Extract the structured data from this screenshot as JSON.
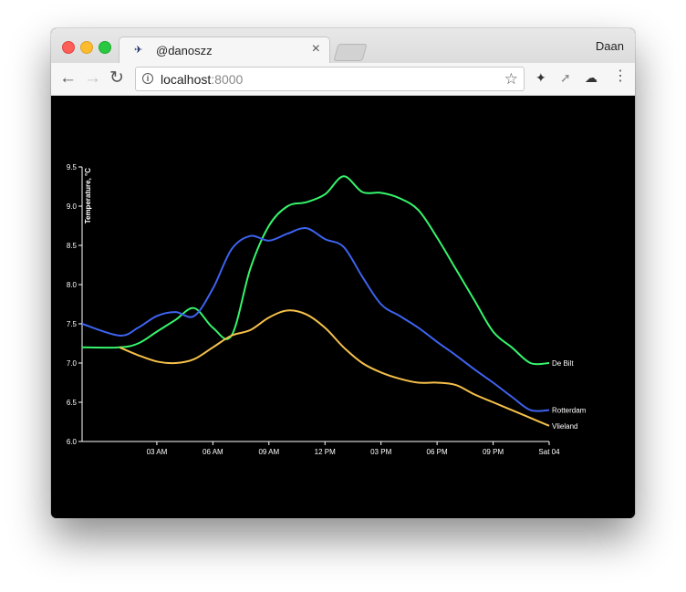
{
  "browser": {
    "tab_title": "@danoszz",
    "tab_close": "×",
    "profile_name": "Daan",
    "url_host": "localhost",
    "url_port": ":8000",
    "favicon": "bird-icon",
    "icons": [
      "back-arrow-icon",
      "forward-arrow-icon",
      "reload-icon",
      "info-icon",
      "star-icon",
      "ninja-extension-icon",
      "runner-extension-icon",
      "cloud-icon",
      "menu-dots-icon"
    ]
  },
  "chart_data": {
    "type": "line",
    "ylabel": "Temperature, °C",
    "ylim": [
      6.0,
      9.5
    ],
    "y_ticks": [
      "6.0",
      "6.5",
      "7.0",
      "7.5",
      "8.0",
      "8.5",
      "9.0",
      "9.5"
    ],
    "x_range_hours": [
      -1,
      24
    ],
    "x_ticks": [
      {
        "hour": 3,
        "label": "03 AM"
      },
      {
        "hour": 6,
        "label": "06 AM"
      },
      {
        "hour": 9,
        "label": "09 AM"
      },
      {
        "hour": 12,
        "label": "12 PM"
      },
      {
        "hour": 15,
        "label": "03 PM"
      },
      {
        "hour": 18,
        "label": "06 PM"
      },
      {
        "hour": 21,
        "label": "09 PM"
      },
      {
        "hour": 24,
        "label": "Sat 04"
      }
    ],
    "grid": false,
    "legend": "end-of-line labels",
    "series": [
      {
        "name": "De Bilt",
        "color": "#36f56c",
        "x": [
          -1,
          1,
          2,
          3,
          4,
          5,
          6,
          7,
          8,
          9,
          10,
          11,
          12,
          13,
          14,
          15,
          16,
          17,
          18,
          19,
          20,
          21,
          22,
          23,
          24
        ],
        "y": [
          7.2,
          7.2,
          7.25,
          7.4,
          7.55,
          7.7,
          7.45,
          7.35,
          8.2,
          8.75,
          9.0,
          9.05,
          9.15,
          9.38,
          9.18,
          9.17,
          9.1,
          8.95,
          8.6,
          8.2,
          7.8,
          7.4,
          7.2,
          7.0,
          7.0
        ]
      },
      {
        "name": "Rotterdam",
        "color": "#3e63f0",
        "x": [
          -1,
          1,
          2,
          3,
          4,
          5,
          6,
          7,
          8,
          9,
          10,
          11,
          12,
          13,
          14,
          15,
          16,
          17,
          18,
          19,
          20,
          21,
          22,
          23,
          24
        ],
        "y": [
          7.5,
          7.35,
          7.45,
          7.6,
          7.65,
          7.6,
          7.95,
          8.45,
          8.62,
          8.56,
          8.65,
          8.72,
          8.58,
          8.48,
          8.1,
          7.75,
          7.6,
          7.45,
          7.27,
          7.1,
          6.92,
          6.75,
          6.57,
          6.4,
          6.4
        ]
      },
      {
        "name": "Vlieland",
        "color": "#f5c04a",
        "x": [
          1,
          2,
          3,
          4,
          5,
          6,
          7,
          8,
          9,
          10,
          11,
          12,
          13,
          14,
          15,
          16,
          17,
          18,
          19,
          20,
          21,
          22,
          23,
          24
        ],
        "y": [
          7.2,
          7.1,
          7.02,
          7.0,
          7.05,
          7.2,
          7.35,
          7.42,
          7.58,
          7.67,
          7.62,
          7.45,
          7.2,
          7.0,
          6.88,
          6.8,
          6.75,
          6.75,
          6.72,
          6.6,
          6.5,
          6.4,
          6.3,
          6.2
        ]
      }
    ]
  }
}
